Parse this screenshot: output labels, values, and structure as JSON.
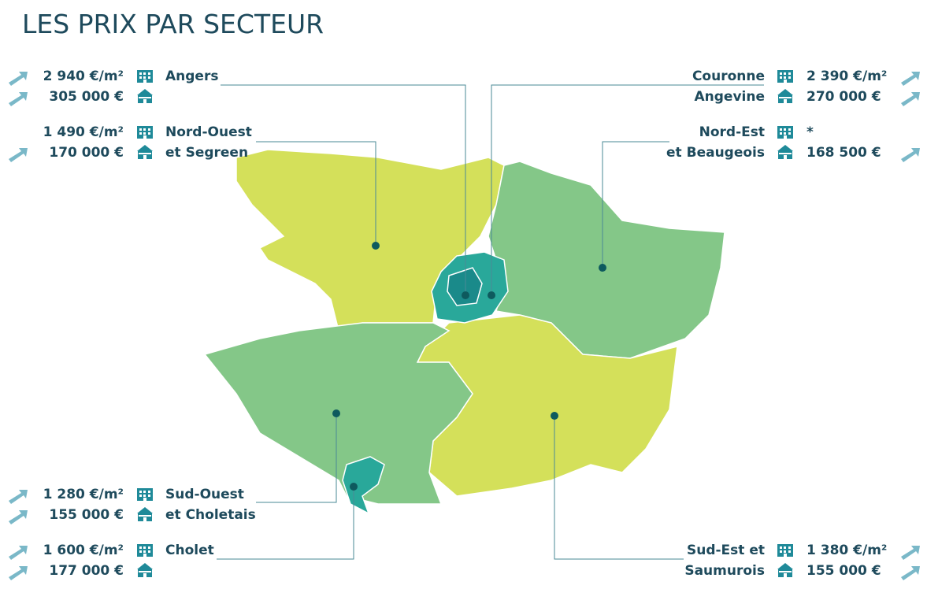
{
  "title": "LES PRIX PAR SECTEUR",
  "sectors": [
    {
      "name": [
        "Angers"
      ],
      "apartment": "2 940 €/m²",
      "house": "305 000 €"
    },
    {
      "name": [
        "Nord-Ouest",
        "et Segreen"
      ],
      "apartment": "1 490 €/m²",
      "house": "170 000 €"
    },
    {
      "name": [
        "Couronne",
        "Angevine"
      ],
      "apartment": "2 390 €/m²",
      "house": "270 000 €"
    },
    {
      "name": [
        "Nord-Est",
        "et Beaugeois"
      ],
      "apartment": "*",
      "house": "168 500 €"
    },
    {
      "name": [
        "Sud-Ouest",
        "et Choletais"
      ],
      "apartment": "1 280 €/m²",
      "house": "155 000 €"
    },
    {
      "name": [
        "Cholet"
      ],
      "apartment": "1 600 €/m²",
      "house": "177 000 €"
    },
    {
      "name": [
        "Sud-Est et",
        "Saumurois"
      ],
      "apartment": "1 380 €/m²",
      "house": "155 000 €"
    }
  ]
}
